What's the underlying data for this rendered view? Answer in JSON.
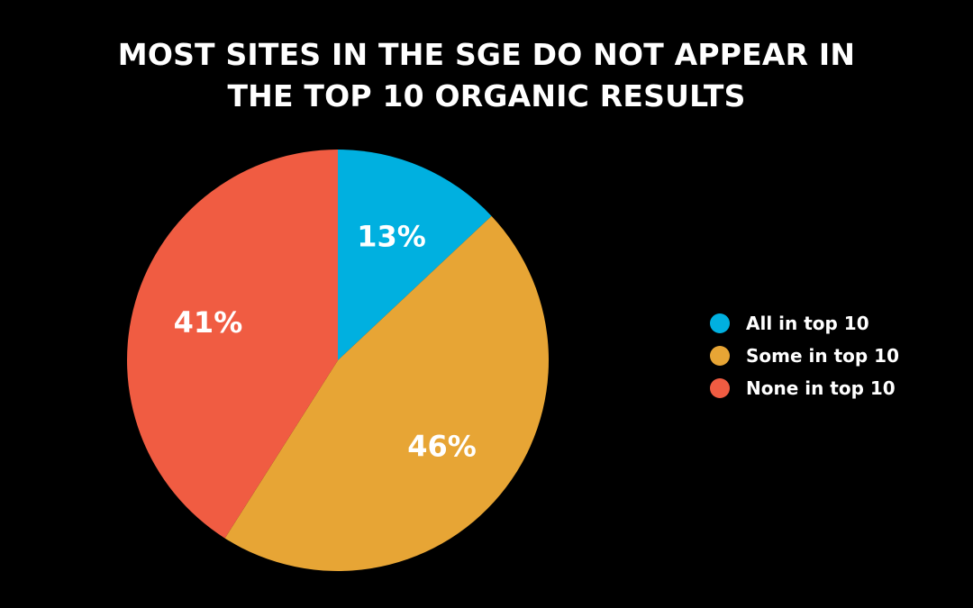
{
  "chart_data": {
    "type": "pie",
    "title_lines": [
      "MOST SITES IN THE SGE DO NOT APPEAR IN",
      "THE TOP 10 ORGANIC RESULTS"
    ],
    "categories": [
      "All in top 10",
      "Some in top 10",
      "None in top 10"
    ],
    "values": [
      13,
      46,
      41
    ],
    "data_labels": [
      "13%",
      "46%",
      "41%"
    ],
    "colors": [
      "#00b0e0",
      "#e7a535",
      "#f05c42"
    ],
    "legend_position": "right"
  }
}
